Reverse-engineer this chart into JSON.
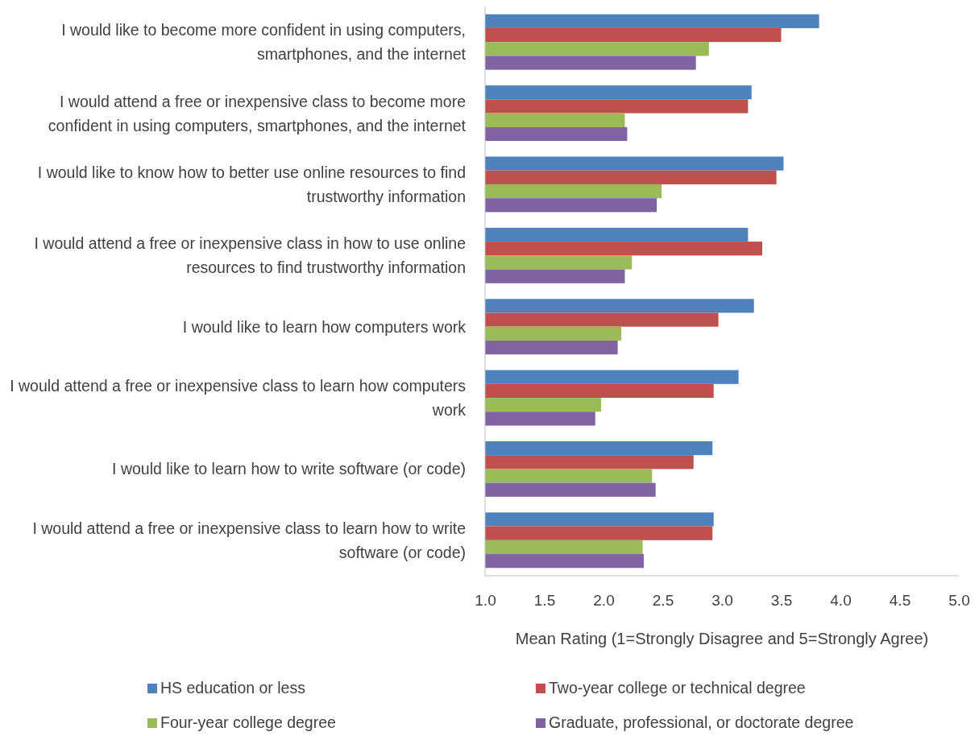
{
  "chart_data": {
    "type": "bar",
    "orientation": "horizontal",
    "xlabel": "Mean Rating (1=Strongly Disagree and 5=Strongly Agree)",
    "categories": [
      "I would like to become more confident in using computers, smartphones, and the internet",
      "I would attend a free or inexpensive class to become more confident in using computers, smartphones, and the internet",
      "I would like to know how to better use online resources to find trustworthy information",
      "I would attend a free or inexpensive class in how to use online resources to find trustworthy information",
      "I would like to learn how computers work",
      "I would attend a free or inexpensive class to learn how computers work",
      "I would like to learn how to write software (or code)",
      "I would attend a free or inexpensive class to learn how to write software (or code)"
    ],
    "series": [
      {
        "name": "HS education or less",
        "color": "#4f81bd",
        "values": [
          3.82,
          3.25,
          3.52,
          3.22,
          3.27,
          3.14,
          2.92,
          2.93
        ]
      },
      {
        "name": "Two-year college or technical degree",
        "color": "#c0504d",
        "values": [
          3.5,
          3.22,
          3.46,
          3.34,
          2.97,
          2.93,
          2.76,
          2.92
        ]
      },
      {
        "name": "Four-year college degree",
        "color": "#9bbb59",
        "values": [
          2.89,
          2.18,
          2.49,
          2.24,
          2.15,
          1.98,
          2.41,
          2.33
        ]
      },
      {
        "name": "Graduate, professional, or doctorate degree",
        "color": "#8064a2",
        "values": [
          2.78,
          2.2,
          2.45,
          2.18,
          2.12,
          1.93,
          2.44,
          2.34
        ]
      }
    ],
    "xlim": [
      1,
      5
    ],
    "xticks": [
      {
        "value": 1,
        "label": "1.0"
      },
      {
        "value": 1.5,
        "label": "1.5"
      },
      {
        "value": 2,
        "label": "2.0"
      },
      {
        "value": 2.5,
        "label": "2.5"
      },
      {
        "value": 3,
        "label": "3.0"
      },
      {
        "value": 3.5,
        "label": "3.5"
      },
      {
        "value": 4,
        "label": "4.0"
      },
      {
        "value": 4.5,
        "label": "4.5"
      },
      {
        "value": 5,
        "label": "5.0"
      }
    ],
    "grid": false,
    "legend": "bottom"
  }
}
